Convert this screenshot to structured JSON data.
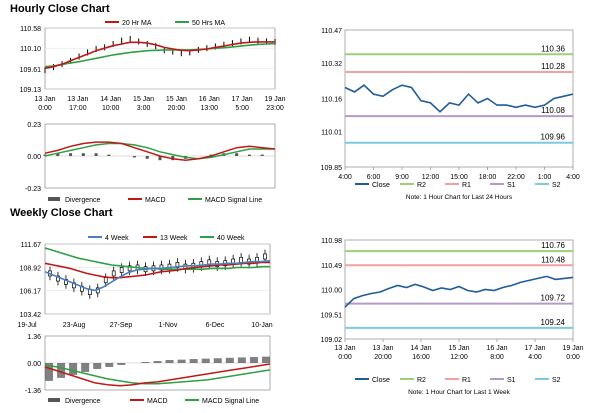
{
  "sections": {
    "hourly_title": "Hourly Close Chart",
    "weekly_title": "Weekly Close Chart"
  },
  "colors": {
    "close": "#1f5c99",
    "r2": "#9bd078",
    "r1": "#f0a1a1",
    "s1": "#b59ac8",
    "s2": "#7ec8e3",
    "ma_short": "#c01818",
    "ma_long": "#2ea043",
    "ma_4wk": "#4a7fc0",
    "macd": "#c01818",
    "signal": "#2ea043",
    "divergence": "#555555"
  },
  "chart_data": [
    {
      "id": "hourly_price",
      "type": "line",
      "legend": [
        "20 Hr MA",
        "50 Hrs MA"
      ],
      "y_ticks": [
        "110.58",
        "110.10",
        "109.61",
        "109.13"
      ],
      "y_tick_values": [
        110.58,
        110.1,
        109.61,
        109.13
      ],
      "ylim": [
        109.13,
        110.58
      ],
      "x_ticks": [
        [
          "13 Jan",
          "0:00"
        ],
        [
          "13 Jan",
          "17:00"
        ],
        [
          "14 Jan",
          "10:00"
        ],
        [
          "15 Jan",
          "3:00"
        ],
        [
          "15 Jan",
          "20:00"
        ],
        [
          "16 Jan",
          "13:00"
        ],
        [
          "17 Jan",
          "5:00"
        ],
        [
          "19 Jan",
          "23:00"
        ]
      ],
      "series": [
        {
          "name": "Close",
          "values": [
            109.58,
            109.65,
            109.72,
            109.8,
            109.9,
            110.0,
            110.08,
            110.12,
            110.2,
            110.28,
            110.32,
            110.26,
            110.2,
            110.15,
            110.05,
            110.02,
            109.98,
            110.0,
            110.06,
            110.1,
            110.14,
            110.18,
            110.22,
            110.26,
            110.3,
            110.28,
            110.26,
            110.25
          ]
        },
        {
          "name": "20 Hr MA",
          "values": [
            109.62,
            109.66,
            109.72,
            109.8,
            109.88,
            109.96,
            110.04,
            110.1,
            110.16,
            110.2,
            110.24,
            110.24,
            110.22,
            110.18,
            110.12,
            110.08,
            110.05,
            110.04,
            110.06,
            110.08,
            110.12,
            110.15,
            110.19,
            110.22,
            110.24,
            110.25,
            110.25,
            110.25
          ]
        },
        {
          "name": "50 Hrs MA",
          "values": [
            109.66,
            109.68,
            109.71,
            109.75,
            109.78,
            109.82,
            109.86,
            109.9,
            109.94,
            109.97,
            110.0,
            110.02,
            110.04,
            110.05,
            110.06,
            110.06,
            110.06,
            110.06,
            110.07,
            110.08,
            110.1,
            110.11,
            110.13,
            110.15,
            110.17,
            110.19,
            110.2,
            110.21
          ]
        }
      ]
    },
    {
      "id": "hourly_macd",
      "type": "line",
      "legend": [
        "Divergence",
        "MACD",
        "MACD Signal Line"
      ],
      "y_ticks": [
        "0.23",
        "0.00",
        "-0.23"
      ],
      "y_tick_values": [
        0.23,
        0.0,
        -0.23
      ],
      "ylim": [
        -0.23,
        0.23
      ],
      "series": [
        {
          "name": "MACD",
          "values": [
            0.02,
            0.04,
            0.07,
            0.09,
            0.1,
            0.1,
            0.09,
            0.06,
            0.03,
            0.0,
            -0.02,
            -0.03,
            -0.02,
            0.0,
            0.03,
            0.06,
            0.07,
            0.06,
            0.05
          ]
        },
        {
          "name": "MACD Signal Line",
          "values": [
            0.0,
            0.02,
            0.04,
            0.06,
            0.08,
            0.09,
            0.09,
            0.08,
            0.06,
            0.03,
            0.01,
            -0.01,
            -0.02,
            -0.01,
            0.01,
            0.03,
            0.05,
            0.05,
            0.05
          ]
        },
        {
          "name": "Divergence",
          "values": [
            0.01,
            0.02,
            0.02,
            0.02,
            0.02,
            0.01,
            0.0,
            -0.01,
            -0.02,
            -0.03,
            -0.03,
            -0.02,
            0.0,
            0.01,
            0.02,
            0.02,
            0.01,
            0.01,
            0.0
          ]
        }
      ]
    },
    {
      "id": "hourly_pivot",
      "type": "line",
      "y_ticks": [
        "110.47",
        "110.32",
        "110.16",
        "110.01",
        "109.85"
      ],
      "y_tick_values": [
        110.47,
        110.32,
        110.16,
        110.01,
        109.85
      ],
      "ylim": [
        109.85,
        110.47
      ],
      "x_ticks": [
        "4:00",
        "6:00",
        "9:00",
        "12:00",
        "15:00",
        "18:00",
        "22:00",
        "1:00",
        "4:00"
      ],
      "legend": [
        "Close",
        "R2",
        "R1",
        "S1",
        "S2"
      ],
      "note": "Note: 1 Hour Chart for Last 24 Hours",
      "levels": [
        {
          "name": "R2",
          "value": 110.36,
          "label": "110.36"
        },
        {
          "name": "R1",
          "value": 110.28,
          "label": "110.28"
        },
        {
          "name": "S1",
          "value": 110.08,
          "label": "110.08"
        },
        {
          "name": "S2",
          "value": 109.96,
          "label": "109.96"
        }
      ],
      "series": [
        {
          "name": "Close",
          "values": [
            110.21,
            110.19,
            110.22,
            110.18,
            110.17,
            110.2,
            110.22,
            110.21,
            110.15,
            110.14,
            110.1,
            110.14,
            110.13,
            110.18,
            110.14,
            110.16,
            110.13,
            110.13,
            110.12,
            110.13,
            110.12,
            110.13,
            110.16,
            110.17,
            110.18
          ]
        }
      ]
    },
    {
      "id": "weekly_price",
      "type": "line",
      "legend": [
        "4 Week",
        "13 Week",
        "40 Week"
      ],
      "y_ticks": [
        "111.67",
        "108.92",
        "106.17",
        "103.42"
      ],
      "y_tick_values": [
        111.67,
        108.92,
        106.17,
        103.42
      ],
      "ylim": [
        103.42,
        111.67
      ],
      "x_ticks": [
        "19-Jul",
        "23-Aug",
        "27-Sep",
        "1-Nov",
        "6-Dec",
        "10-Jan"
      ],
      "series": [
        {
          "name": "Close",
          "values": [
            108.2,
            107.6,
            107.2,
            106.8,
            106.4,
            106.0,
            106.2,
            107.4,
            108.2,
            108.6,
            108.8,
            108.9,
            108.7,
            108.8,
            108.9,
            109.0,
            109.2,
            109.0,
            109.1,
            109.3,
            109.5,
            109.3,
            109.4,
            109.6,
            109.8,
            109.6,
            109.8,
            110.2
          ]
        },
        {
          "name": "4 Week",
          "values": [
            108.4,
            108.0,
            107.6,
            107.2,
            106.8,
            106.4,
            106.2,
            106.6,
            107.2,
            107.8,
            108.3,
            108.6,
            108.7,
            108.8,
            108.8,
            108.9,
            109.0,
            109.1,
            109.1,
            109.2,
            109.3,
            109.3,
            109.4,
            109.4,
            109.5,
            109.6,
            109.6,
            109.7
          ]
        },
        {
          "name": "13 Week",
          "values": [
            109.4,
            109.2,
            109.0,
            108.8,
            108.5,
            108.2,
            108.0,
            107.8,
            107.7,
            107.7,
            107.8,
            107.9,
            108.0,
            108.2,
            108.4,
            108.5,
            108.6,
            108.8,
            108.9,
            109.0,
            109.1,
            109.2,
            109.2,
            109.3,
            109.4,
            109.4,
            109.5,
            109.5
          ]
        },
        {
          "name": "40 Week",
          "values": [
            111.2,
            110.9,
            110.6,
            110.3,
            110.0,
            109.8,
            109.6,
            109.4,
            109.2,
            109.1,
            109.0,
            108.9,
            108.8,
            108.8,
            108.7,
            108.7,
            108.7,
            108.7,
            108.7,
            108.7,
            108.8,
            108.8,
            108.8,
            108.9,
            108.9,
            108.9,
            109.0,
            109.0
          ]
        }
      ]
    },
    {
      "id": "weekly_macd",
      "type": "line",
      "legend": [
        "Divergence",
        "MACD",
        "MACD Signal Line"
      ],
      "y_ticks": [
        "1.36",
        "0.00",
        "-1.36"
      ],
      "y_tick_values": [
        1.36,
        0.0,
        -1.36
      ],
      "ylim": [
        -1.36,
        1.36
      ],
      "series": [
        {
          "name": "MACD",
          "values": [
            -0.2,
            -0.4,
            -0.6,
            -0.8,
            -1.0,
            -1.1,
            -1.15,
            -1.1,
            -1.0,
            -0.95,
            -0.85,
            -0.75,
            -0.65,
            -0.55,
            -0.45,
            -0.35,
            -0.25,
            -0.15,
            -0.05
          ]
        },
        {
          "name": "MACD Signal Line",
          "values": [
            -0.1,
            -0.2,
            -0.35,
            -0.5,
            -0.65,
            -0.8,
            -0.9,
            -1.0,
            -1.05,
            -1.05,
            -1.0,
            -0.95,
            -0.9,
            -0.85,
            -0.75,
            -0.65,
            -0.55,
            -0.45,
            -0.35
          ]
        },
        {
          "name": "Divergence",
          "values": [
            -0.9,
            -0.75,
            -0.6,
            -0.45,
            -0.3,
            -0.2,
            -0.1,
            0.0,
            0.05,
            0.1,
            0.15,
            0.17,
            0.2,
            0.22,
            0.24,
            0.26,
            0.28,
            0.3,
            0.32
          ]
        }
      ]
    },
    {
      "id": "weekly_pivot",
      "type": "line",
      "y_ticks": [
        "110.98",
        "110.49",
        "110.00",
        "109.51",
        "109.02"
      ],
      "y_tick_values": [
        110.98,
        110.49,
        110.0,
        109.51,
        109.02
      ],
      "ylim": [
        109.02,
        110.98
      ],
      "x_ticks": [
        [
          "13 Jan",
          "0:00"
        ],
        [
          "13 Jan",
          "20:00"
        ],
        [
          "14 Jan",
          "16:00"
        ],
        [
          "15 Jan",
          "12:00"
        ],
        [
          "16 Jan",
          "8:00"
        ],
        [
          "17 Jan",
          "4:00"
        ],
        [
          "19 Jan",
          "0:00"
        ]
      ],
      "legend": [
        "Close",
        "R2",
        "R1",
        "S1",
        "S2"
      ],
      "note": "Note: 1 Hour Chart for Last 1 Week",
      "levels": [
        {
          "name": "R2",
          "value": 110.76,
          "label": "110.76"
        },
        {
          "name": "R1",
          "value": 110.48,
          "label": "110.48"
        },
        {
          "name": "S1",
          "value": 109.72,
          "label": "109.72"
        },
        {
          "name": "S2",
          "value": 109.24,
          "label": "109.24"
        }
      ],
      "series": [
        {
          "name": "Close",
          "values": [
            109.65,
            109.82,
            109.88,
            109.92,
            109.95,
            110.02,
            110.08,
            110.04,
            110.1,
            110.05,
            109.98,
            110.03,
            110.0,
            110.06,
            109.98,
            109.95,
            110.0,
            109.98,
            110.04,
            110.08,
            110.14,
            110.18,
            110.22,
            110.26,
            110.2,
            110.22,
            110.24
          ]
        }
      ]
    }
  ]
}
